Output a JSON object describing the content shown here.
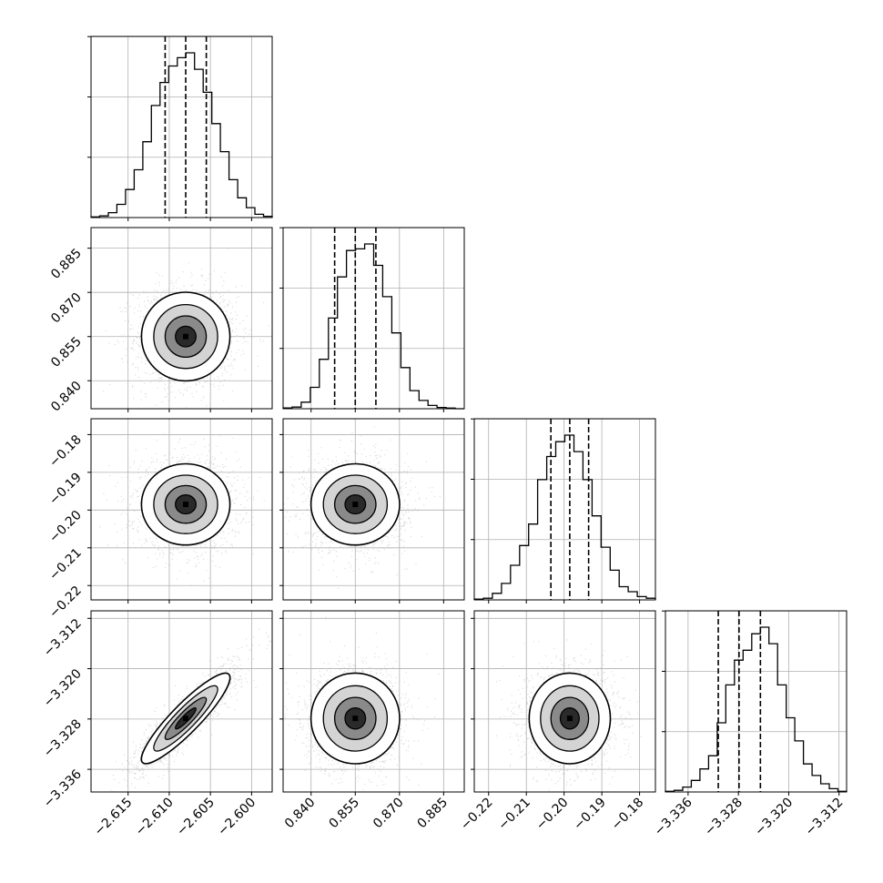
{
  "chart_data": {
    "type": "corner",
    "variables": [
      {
        "range": [
          -2.6195,
          -2.5975
        ],
        "ticks": [
          -2.615,
          -2.61,
          -2.605,
          -2.6
        ],
        "tick_labels": [
          "−2.615",
          "−2.610",
          "−2.605",
          "−2.600"
        ],
        "quantiles": [
          -2.6105,
          -2.608,
          -2.6055
        ]
      },
      {
        "range": [
          0.8305,
          0.892
        ],
        "ticks": [
          0.84,
          0.855,
          0.87,
          0.885
        ],
        "tick_labels": [
          "0.840",
          "0.855",
          "0.870",
          "0.885"
        ],
        "quantiles": [
          0.848,
          0.855,
          0.862
        ]
      },
      {
        "range": [
          -0.2238,
          -0.1758
        ],
        "ticks": [
          -0.22,
          -0.21,
          -0.2,
          -0.19,
          -0.18
        ],
        "tick_labels": [
          "−0.22",
          "−0.21",
          "−0.20",
          "−0.19",
          "−0.18"
        ],
        "quantiles": [
          -0.2035,
          -0.1985,
          -0.1935
        ]
      },
      {
        "range": [
          -3.3396,
          -3.3108
        ],
        "ticks": [
          -3.336,
          -3.328,
          -3.32,
          -3.312
        ],
        "tick_labels": [
          "−3.336",
          "−3.328",
          "−3.320",
          "−3.312"
        ],
        "quantiles": [
          -3.3312,
          -3.3279,
          -3.3245
        ]
      }
    ],
    "histograms": [
      [
        0.004,
        0.01,
        0.03,
        0.08,
        0.17,
        0.29,
        0.46,
        0.68,
        0.82,
        0.92,
        0.97,
        1.0,
        0.9,
        0.76,
        0.57,
        0.4,
        0.23,
        0.12,
        0.06,
        0.02,
        0.008
      ],
      [
        0.005,
        0.01,
        0.04,
        0.13,
        0.3,
        0.55,
        0.8,
        0.96,
        0.97,
        1.0,
        0.87,
        0.68,
        0.46,
        0.25,
        0.11,
        0.05,
        0.02,
        0.008,
        0.004,
        0.0
      ],
      [
        0.005,
        0.01,
        0.04,
        0.1,
        0.21,
        0.33,
        0.46,
        0.73,
        0.87,
        0.96,
        1.0,
        0.9,
        0.73,
        0.51,
        0.32,
        0.18,
        0.08,
        0.05,
        0.02,
        0.01
      ],
      [
        0.004,
        0.01,
        0.03,
        0.07,
        0.14,
        0.22,
        0.42,
        0.65,
        0.8,
        0.86,
        0.96,
        1.0,
        0.9,
        0.65,
        0.45,
        0.31,
        0.17,
        0.1,
        0.05,
        0.02,
        0.004
      ]
    ],
    "pair_correlation": {
      "3-0": 0.9
    },
    "grid": true
  }
}
